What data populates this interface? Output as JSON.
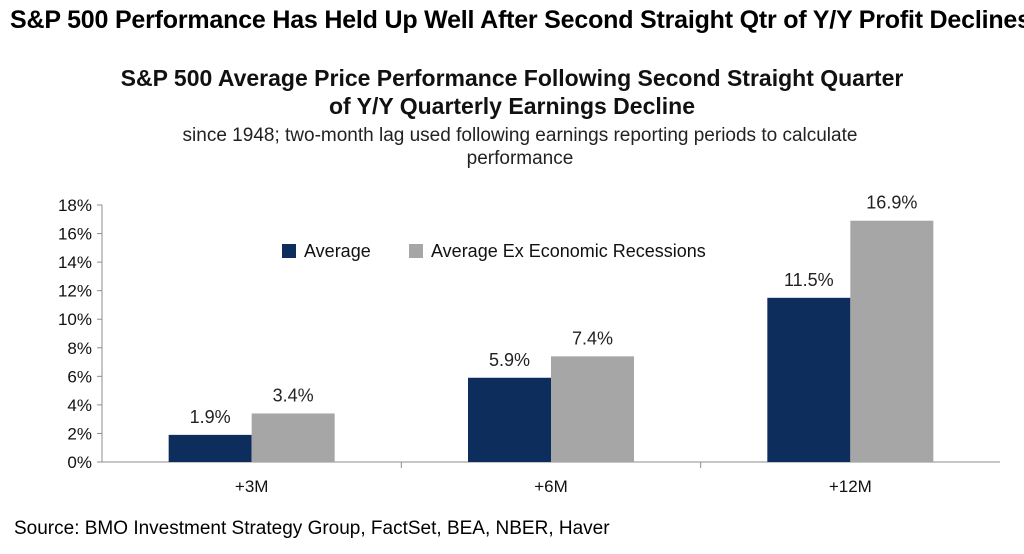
{
  "headline": "S&P 500 Performance Has Held Up Well After Second Straight Qtr of Y/Y Profit Declines",
  "source": "Source: BMO Investment Strategy Group, FactSet, BEA, NBER, Haver",
  "chart_data": {
    "type": "bar",
    "title_lines": [
      "S&P 500 Average Price Performance Following Second Straight Quarter",
      "of Y/Y Quarterly Earnings Decline"
    ],
    "subtitle_lines": [
      "since 1948; two-month lag used following earnings reporting periods to calculate",
      "performance"
    ],
    "categories": [
      "+3M",
      "+6M",
      "+12M"
    ],
    "series": [
      {
        "name": "Average",
        "color": "#0d2d5c",
        "values": [
          1.9,
          5.9,
          11.5
        ],
        "labels": [
          "1.9%",
          "5.9%",
          "11.5%"
        ]
      },
      {
        "name": "Average Ex Economic Recessions",
        "color": "#a6a6a6",
        "values": [
          3.4,
          7.4,
          16.9
        ],
        "labels": [
          "3.4%",
          "7.4%",
          "16.9%"
        ]
      }
    ],
    "y_ticks": [
      "0%",
      "2%",
      "4%",
      "6%",
      "8%",
      "10%",
      "12%",
      "14%",
      "16%",
      "18%"
    ],
    "ylim": [
      0,
      18
    ],
    "ytick_step": 2,
    "grid": false,
    "legend_position": "top-center"
  }
}
